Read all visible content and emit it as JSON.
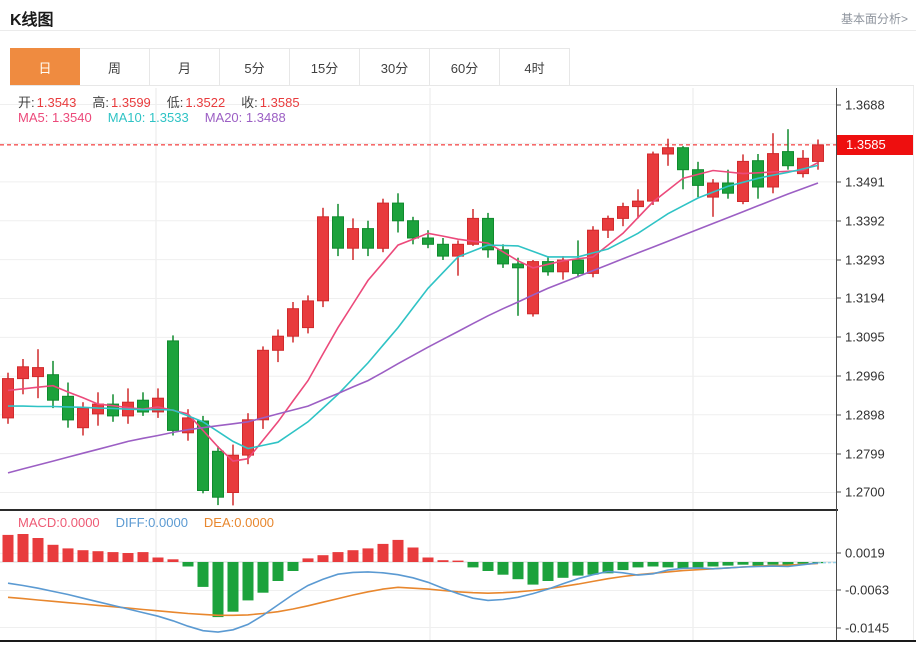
{
  "header": {
    "title": "K线图",
    "link": "基本面分析>"
  },
  "tabs": {
    "items": [
      "日",
      "周",
      "月",
      "5分",
      "15分",
      "30分",
      "60分",
      "4时"
    ],
    "active_index": 0
  },
  "ohlc": {
    "open_label": "开:",
    "open": "1.3543",
    "high_label": "高:",
    "high": "1.3599",
    "low_label": "低:",
    "low": "1.3522",
    "close_label": "收:",
    "close": "1.3585"
  },
  "ma": {
    "ma5_label": "MA5:",
    "ma5": "1.3540",
    "ma10_label": "MA10:",
    "ma10": "1.3533",
    "ma20_label": "MA20:",
    "ma20": "1.3488"
  },
  "macd_legend": {
    "macd_label": "MACD:",
    "macd": "0.0000",
    "diff_label": "DIFF:",
    "diff": "0.0000",
    "dea_label": "DEA:",
    "dea": "0.0000"
  },
  "price_axis": {
    "current_price": "1.3585"
  },
  "colors": {
    "up": "#e83b3d",
    "up_border": "#d02a2c",
    "down": "#1ca23c",
    "down_border": "#0f8a2d",
    "ma5": "#ec4a7b",
    "ma10": "#2fc3c5",
    "ma20": "#9c5fc4",
    "macd_text": "#ee5a74",
    "diff_line": "#5b9ad2",
    "dea_line": "#e8872e",
    "price_line": "#f01212",
    "badge": "#ee0f0f",
    "tab_active": "#ef8b40",
    "grid": "#efefef",
    "grid_vertical": "#e9e9e9",
    "zero_line": "#d8d8d8",
    "diff_dash_ext": "#9ad4ea"
  },
  "chart_data": [
    {
      "panel": "price",
      "type": "candlestick",
      "note": "red = up (Chinese convention), green = down",
      "current_price": 1.3585,
      "y_ticks": [
        1.3688,
        1.3491,
        1.3392,
        1.3293,
        1.3194,
        1.3095,
        1.2996,
        1.2898,
        1.2799,
        1.27
      ],
      "y_gridlines": [
        1.3688,
        1.3589,
        1.3491,
        1.3392,
        1.3293,
        1.3194,
        1.3095,
        1.2996,
        1.2898,
        1.2799,
        1.27
      ],
      "open": [
        1.289,
        1.299,
        1.2995,
        1.3,
        1.2945,
        1.2865,
        1.29,
        1.2925,
        1.2895,
        1.2935,
        1.2905,
        1.3086,
        1.2852,
        1.2882,
        1.2805,
        1.27,
        1.2795,
        1.2885,
        1.3062,
        1.3098,
        1.312,
        1.3188,
        1.3402,
        1.3322,
        1.3372,
        1.3322,
        1.3437,
        1.3392,
        1.3348,
        1.3332,
        1.3302,
        1.3332,
        1.3398,
        1.3318,
        1.3282,
        1.3155,
        1.3288,
        1.3262,
        1.3292,
        1.3258,
        1.3368,
        1.3398,
        1.3428,
        1.3442,
        1.3562,
        1.3578,
        1.3522,
        1.3452,
        1.3488,
        1.3441,
        1.3545,
        1.3478,
        1.3568,
        1.3512,
        1.3543
      ],
      "high": [
        1.3005,
        1.304,
        1.3065,
        1.3035,
        1.298,
        1.293,
        1.2955,
        1.295,
        1.2965,
        1.2955,
        1.2965,
        1.31,
        1.2912,
        1.2895,
        1.2818,
        1.2822,
        1.2902,
        1.3072,
        1.3115,
        1.3185,
        1.3202,
        1.3425,
        1.3435,
        1.3398,
        1.3392,
        1.3448,
        1.3462,
        1.3402,
        1.3368,
        1.3348,
        1.3342,
        1.3422,
        1.3412,
        1.3332,
        1.3298,
        1.3292,
        1.3302,
        1.3302,
        1.3342,
        1.3378,
        1.3405,
        1.3438,
        1.3472,
        1.3568,
        1.3601,
        1.3582,
        1.3542,
        1.3498,
        1.3522,
        1.3561,
        1.3562,
        1.3615,
        1.3625,
        1.3572,
        1.3599
      ],
      "low": [
        1.2875,
        1.295,
        1.294,
        1.2915,
        1.2865,
        1.2845,
        1.287,
        1.288,
        1.2875,
        1.2895,
        1.289,
        1.2845,
        1.2832,
        1.2698,
        1.2668,
        1.2667,
        1.2772,
        1.2862,
        1.3032,
        1.3082,
        1.3105,
        1.3172,
        1.3302,
        1.3292,
        1.3302,
        1.3312,
        1.3362,
        1.3332,
        1.3322,
        1.3292,
        1.3252,
        1.3328,
        1.3298,
        1.3272,
        1.315,
        1.3148,
        1.3252,
        1.3242,
        1.3248,
        1.3248,
        1.3348,
        1.3378,
        1.3398,
        1.3432,
        1.3532,
        1.3472,
        1.3452,
        1.3402,
        1.3448,
        1.3434,
        1.3448,
        1.3462,
        1.3522,
        1.3502,
        1.3522
      ],
      "close": [
        1.299,
        1.302,
        1.3018,
        1.2935,
        1.2885,
        1.2915,
        1.2925,
        1.2895,
        1.293,
        1.2905,
        1.294,
        1.2858,
        1.289,
        1.2705,
        1.2688,
        1.2795,
        1.2885,
        1.3062,
        1.3098,
        1.3168,
        1.3188,
        1.3402,
        1.3322,
        1.3372,
        1.3322,
        1.3437,
        1.3392,
        1.3348,
        1.3332,
        1.3302,
        1.3332,
        1.3398,
        1.3318,
        1.3282,
        1.3272,
        1.3288,
        1.3262,
        1.3292,
        1.3258,
        1.3368,
        1.3398,
        1.3428,
        1.3442,
        1.3562,
        1.3578,
        1.3522,
        1.3482,
        1.3488,
        1.3462,
        1.3543,
        1.3478,
        1.3563,
        1.3532,
        1.3551,
        1.3585
      ],
      "ma5": [
        1.296,
        1.2964,
        1.2968,
        1.2972,
        1.2956,
        1.2941,
        1.2925,
        1.2921,
        1.2916,
        1.2912,
        1.2918,
        1.2909,
        1.29,
        1.2858,
        1.2816,
        1.278,
        1.2786,
        1.2833,
        1.288,
        1.2933,
        1.2985,
        1.3053,
        1.312,
        1.318,
        1.324,
        1.3285,
        1.333,
        1.3345,
        1.336,
        1.3353,
        1.3345,
        1.334,
        1.3335,
        1.3313,
        1.329,
        1.3272,
        1.3281,
        1.329,
        1.3295,
        1.33,
        1.333,
        1.336,
        1.34,
        1.344,
        1.347,
        1.35,
        1.351,
        1.352,
        1.3516,
        1.3512,
        1.3514,
        1.3516,
        1.3518,
        1.352,
        1.354
      ],
      "ma10": [
        1.292,
        1.292,
        1.2919,
        1.2919,
        1.2918,
        1.2917,
        1.2915,
        1.2914,
        1.2912,
        1.2911,
        1.2911,
        1.291,
        1.2895,
        1.288,
        1.2855,
        1.283,
        1.2812,
        1.282,
        1.2828,
        1.2854,
        1.288,
        1.2915,
        1.295,
        1.299,
        1.303,
        1.3075,
        1.312,
        1.317,
        1.322,
        1.326,
        1.33,
        1.3315,
        1.333,
        1.3329,
        1.3328,
        1.3314,
        1.33,
        1.33,
        1.33,
        1.331,
        1.332,
        1.334,
        1.336,
        1.3385,
        1.341,
        1.343,
        1.345,
        1.3465,
        1.348,
        1.349,
        1.35,
        1.3508,
        1.3515,
        1.3524,
        1.3533
      ],
      "ma20": [
        1.275,
        1.276,
        1.277,
        1.278,
        1.279,
        1.28,
        1.281,
        1.282,
        1.283,
        1.2838,
        1.2845,
        1.2853,
        1.286,
        1.2865,
        1.287,
        1.2875,
        1.288,
        1.289,
        1.29,
        1.291,
        1.292,
        1.2936,
        1.2952,
        1.2969,
        1.2985,
        1.3006,
        1.3028,
        1.3049,
        1.307,
        1.309,
        1.311,
        1.313,
        1.315,
        1.3168,
        1.3185,
        1.3203,
        1.322,
        1.3235,
        1.325,
        1.3265,
        1.328,
        1.3295,
        1.331,
        1.3325,
        1.334,
        1.3355,
        1.337,
        1.3385,
        1.34,
        1.3415,
        1.343,
        1.3445,
        1.346,
        1.3474,
        1.3488
      ]
    },
    {
      "panel": "macd",
      "type": "bar",
      "y_ticks": [
        0.0019,
        -0.0063,
        -0.0145
      ],
      "histogram": [
        0.006,
        0.0062,
        0.0053,
        0.0038,
        0.003,
        0.0026,
        0.0024,
        0.0022,
        0.002,
        0.0022,
        0.001,
        0.0006,
        -0.001,
        -0.0055,
        -0.0122,
        -0.011,
        -0.0085,
        -0.0068,
        -0.0042,
        -0.002,
        0.0008,
        0.0015,
        0.0022,
        0.0026,
        0.003,
        0.004,
        0.0049,
        0.0032,
        0.001,
        0.0004,
        0.0003,
        -0.0012,
        -0.002,
        -0.0028,
        -0.0038,
        -0.005,
        -0.0042,
        -0.0035,
        -0.003,
        -0.0028,
        -0.0025,
        -0.0018,
        -0.0012,
        -0.001,
        -0.0012,
        -0.0015,
        -0.0012,
        -0.001,
        -0.0008,
        -0.0006,
        -0.0008,
        -0.0006,
        -0.001,
        -0.0004,
        -0.0001
      ],
      "diff": [
        -0.0047,
        -0.0052,
        -0.0058,
        -0.0065,
        -0.0072,
        -0.008,
        -0.0088,
        -0.0096,
        -0.0104,
        -0.0112,
        -0.012,
        -0.013,
        -0.0142,
        -0.0152,
        -0.0155,
        -0.015,
        -0.0138,
        -0.0118,
        -0.0095,
        -0.0072,
        -0.0052,
        -0.0038,
        -0.0027,
        -0.0023,
        -0.0022,
        -0.0024,
        -0.0028,
        -0.0035,
        -0.0045,
        -0.0058,
        -0.007,
        -0.008,
        -0.0085,
        -0.0083,
        -0.0078,
        -0.007,
        -0.006,
        -0.0048,
        -0.0037,
        -0.0028,
        -0.0021,
        -0.0024,
        -0.0029,
        -0.0026,
        -0.0018,
        -0.0014,
        -0.0013,
        -0.0015,
        -0.0013,
        -0.0011,
        -0.001,
        -0.0009,
        -0.001,
        -0.0006,
        -0.0002
      ],
      "dea": [
        -0.0078,
        -0.0081,
        -0.0084,
        -0.0087,
        -0.009,
        -0.0093,
        -0.0096,
        -0.0099,
        -0.0102,
        -0.0105,
        -0.0108,
        -0.0111,
        -0.0114,
        -0.0116,
        -0.0118,
        -0.0118,
        -0.0117,
        -0.0114,
        -0.011,
        -0.0104,
        -0.0097,
        -0.0089,
        -0.0081,
        -0.0073,
        -0.0066,
        -0.006,
        -0.0056,
        -0.0058,
        -0.006,
        -0.0063,
        -0.0066,
        -0.0068,
        -0.0069,
        -0.0068,
        -0.0066,
        -0.0063,
        -0.0059,
        -0.0054,
        -0.0049,
        -0.0043,
        -0.0037,
        -0.0032,
        -0.0028,
        -0.0025,
        -0.0022,
        -0.0019,
        -0.0017,
        -0.0015,
        -0.0013,
        -0.0011,
        -0.0009,
        -0.0008,
        -0.0007,
        -0.0005,
        -0.0003
      ]
    }
  ]
}
